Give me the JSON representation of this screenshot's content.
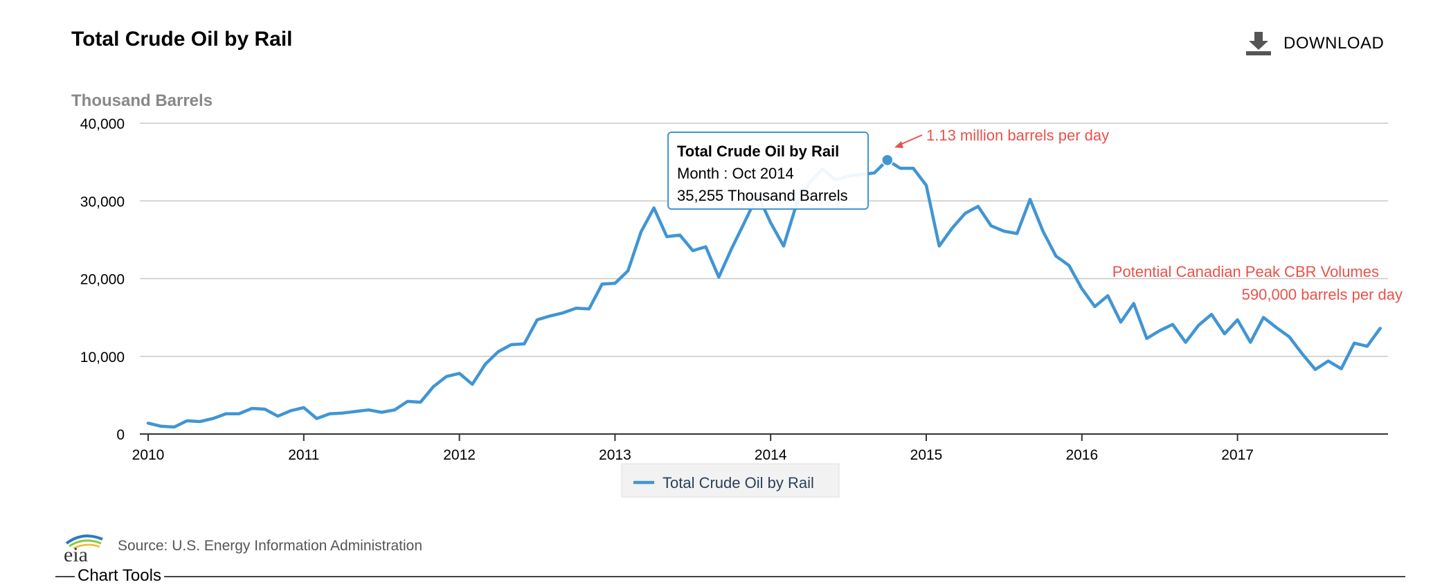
{
  "header": {
    "title": "Total Crude Oil by Rail",
    "download_label": "DOWNLOAD",
    "download_icon": "download-icon"
  },
  "footer": {
    "source_text": "Source: U.S. Energy Information Administration",
    "logo_text": "eia",
    "tools_label": "Chart Tools"
  },
  "colors": {
    "series": "#4195d3",
    "annotation": "#e8524a",
    "grid": "#c8c8c8",
    "tooltip_border": "#4195d3"
  },
  "chart_data": {
    "type": "line",
    "ylabel": "Thousand Barrels",
    "ylim": [
      0,
      40000
    ],
    "yticks": [
      0,
      10000,
      20000,
      30000,
      40000
    ],
    "ytick_labels": [
      "0",
      "10,000",
      "20,000",
      "30,000",
      "40,000"
    ],
    "xlim": [
      "2010-01",
      "2017-12"
    ],
    "xticks": [
      "2010",
      "2011",
      "2012",
      "2013",
      "2014",
      "2015",
      "2016",
      "2017"
    ],
    "grid": true,
    "legend": {
      "position": "bottom-center",
      "label": "Total Crude Oil by Rail"
    },
    "series": [
      {
        "name": "Total Crude Oil by Rail",
        "x_start": "2010-01",
        "frequency": "monthly",
        "values": [
          1400,
          1000,
          900,
          1700,
          1600,
          2000,
          2600,
          2600,
          3300,
          3200,
          2300,
          3000,
          3400,
          2000,
          2600,
          2700,
          2900,
          3100,
          2800,
          3100,
          4200,
          4100,
          6100,
          7400,
          7800,
          6400,
          9000,
          10600,
          11500,
          11600,
          14700,
          15200,
          15600,
          16200,
          16100,
          19300,
          19400,
          21000,
          26000,
          29100,
          25400,
          25600,
          23600,
          24100,
          20200,
          23900,
          27300,
          30800,
          27200,
          24200,
          29600,
          32400,
          34100,
          32700,
          33200,
          33400,
          33600,
          35255,
          34200,
          34200,
          32000,
          24200,
          26500,
          28400,
          29300,
          26800,
          26100,
          25800,
          30200,
          26100,
          22900,
          21700,
          18700,
          16400,
          17800,
          14400,
          16800,
          12300,
          13300,
          14100,
          11800,
          14000,
          15400,
          12900,
          14700,
          11800,
          15000,
          13700,
          12500,
          10300,
          8300,
          9400,
          8400,
          11700,
          11300,
          13600
        ]
      }
    ],
    "annotations": [
      {
        "text": "1.13 million barrels per day",
        "x": "2014-10",
        "y": 35255
      },
      {
        "text": "Potential Canadian Peak CBR Volumes",
        "x": "2017-12",
        "y": 21000
      },
      {
        "text": "590,000 barrels per day",
        "x": "2017-12",
        "y": 18000
      }
    ],
    "tooltip": {
      "title": "Total Crude Oil by Rail",
      "line1": "Month : Oct 2014",
      "line2": "35,255 Thousand Barrels",
      "x": "2014-10",
      "y": 35255
    }
  }
}
